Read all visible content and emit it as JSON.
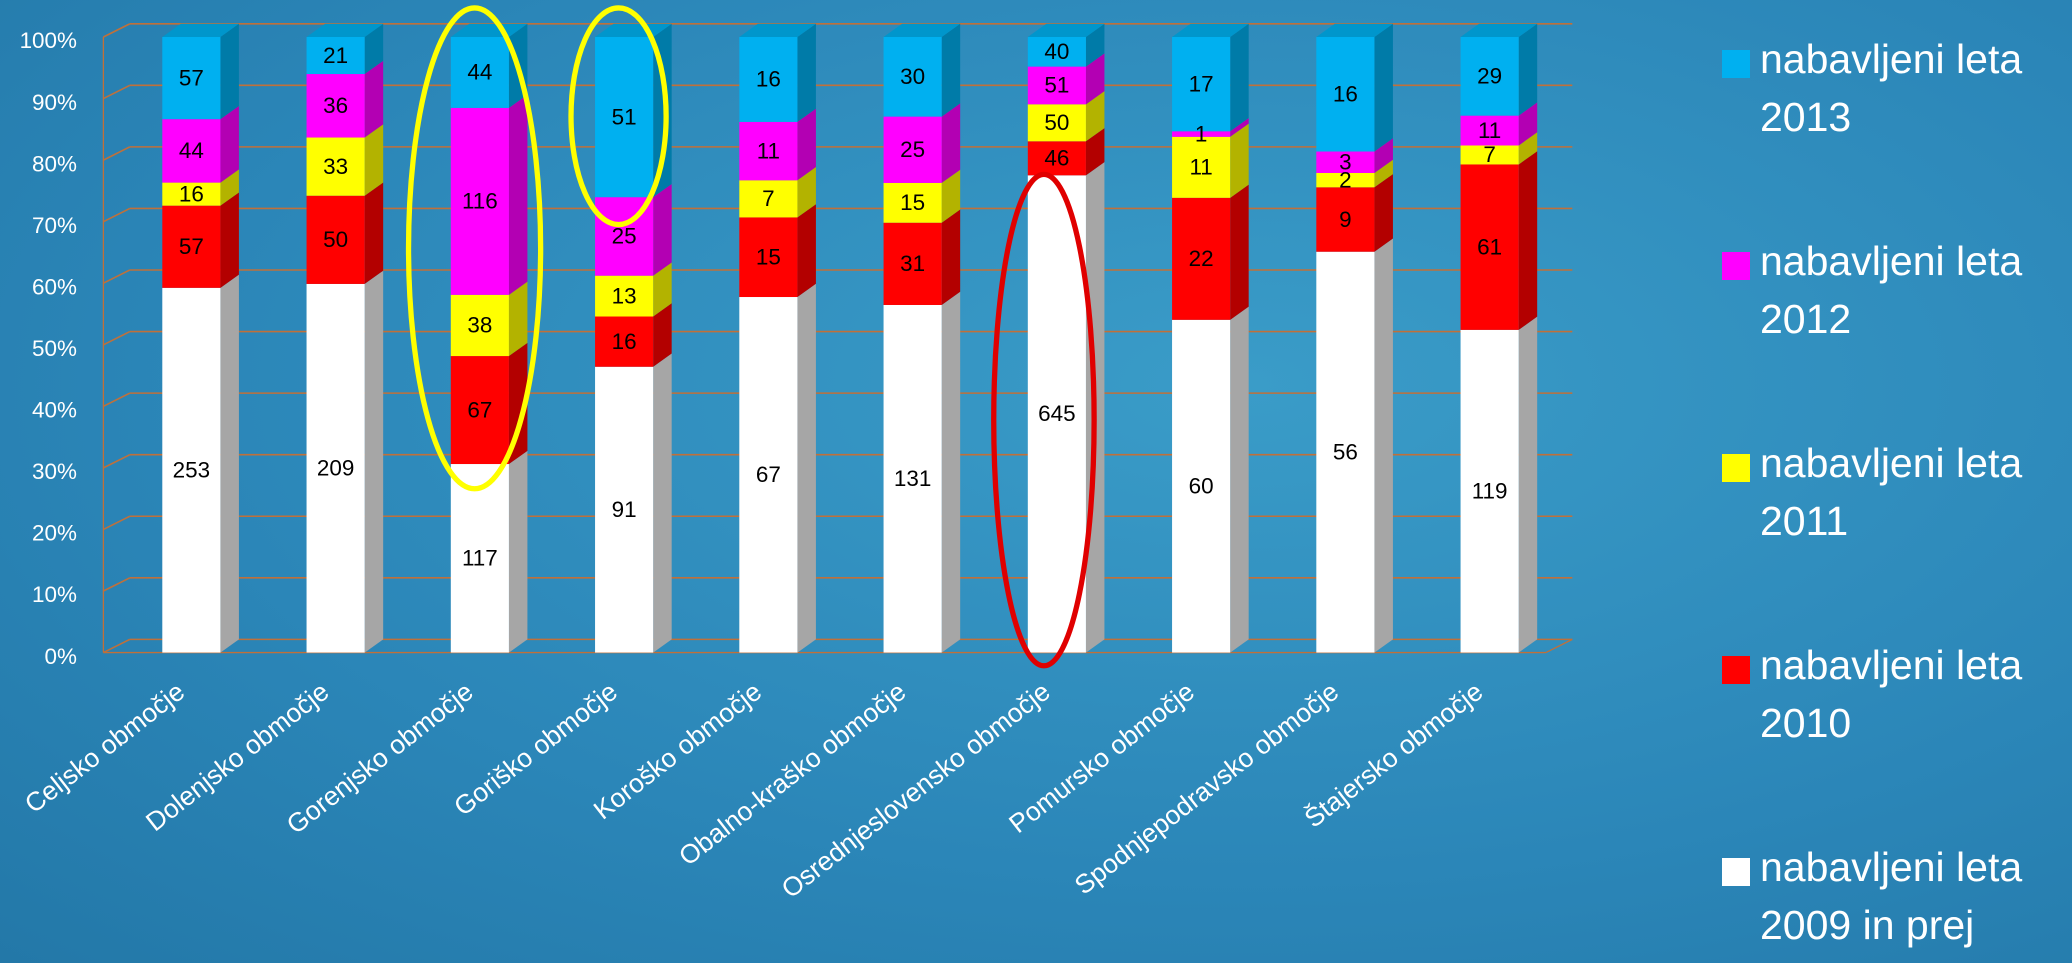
{
  "chart_data": {
    "type": "bar",
    "stacking": "percent",
    "categories": [
      "Celjsko območje",
      "Dolenjsko območje",
      "Gorenjsko območje",
      "Goriško območje",
      "Koroško območje",
      "Obalno-kraško območje",
      "Osrednjeslovensko območje",
      "Pomursko območje",
      "Spodnjepodravsko območje",
      "Štajersko območje"
    ],
    "series": [
      {
        "name": "nabavljeni leta 2013",
        "color": "#00b0f0",
        "values": [
          57,
          21,
          44,
          51,
          16,
          30,
          40,
          17,
          16,
          29
        ]
      },
      {
        "name": "nabavljeni leta 2012",
        "color": "#ff00ff",
        "values": [
          44,
          36,
          116,
          25,
          11,
          25,
          51,
          1,
          3,
          11
        ]
      },
      {
        "name": "nabavljeni leta 2011",
        "color": "#ffff00",
        "values": [
          16,
          33,
          38,
          13,
          7,
          15,
          50,
          11,
          2,
          7
        ]
      },
      {
        "name": "nabavljeni leta 2010",
        "color": "#ff0000",
        "values": [
          57,
          50,
          67,
          16,
          15,
          31,
          46,
          22,
          9,
          61
        ]
      },
      {
        "name": "nabavljeni leta 2009 in prej",
        "color": "#ffffff",
        "values": [
          253,
          209,
          117,
          91,
          67,
          131,
          645,
          60,
          56,
          119
        ]
      }
    ],
    "ylim": [
      0,
      100
    ],
    "yticks": [
      {
        "value": 0,
        "label": "0%"
      },
      {
        "value": 10,
        "label": "10%"
      },
      {
        "value": 20,
        "label": "20%"
      },
      {
        "value": 30,
        "label": "30%"
      },
      {
        "value": 40,
        "label": "40%"
      },
      {
        "value": 50,
        "label": "50%"
      },
      {
        "value": 60,
        "label": "60%"
      },
      {
        "value": 70,
        "label": "70%"
      },
      {
        "value": 80,
        "label": "80%"
      },
      {
        "value": 90,
        "label": "90%"
      },
      {
        "value": 100,
        "label": "100%"
      }
    ],
    "grid": true,
    "legend": "right"
  }
}
